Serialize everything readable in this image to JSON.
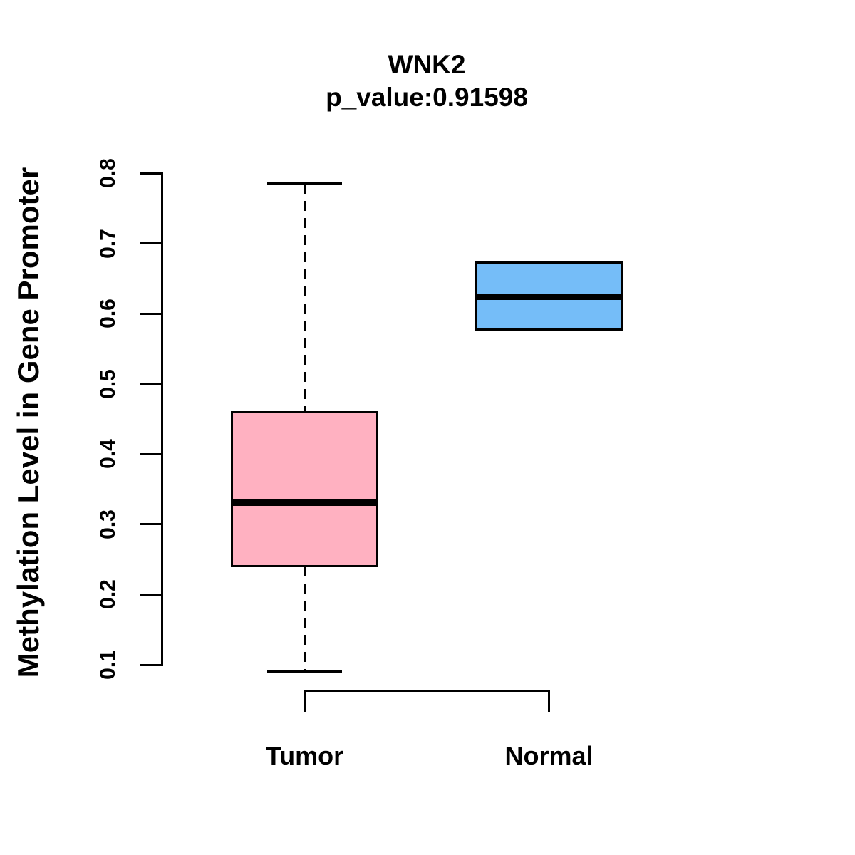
{
  "page": {
    "background_color": "#FFFFFF",
    "text_color": "#000000"
  },
  "chart_data": {
    "type": "boxplot",
    "title": "WNK2",
    "subtitle": "p_value:0.91598",
    "xlabel": "",
    "ylabel": "Methylation Level in Gene Promoter",
    "ylim": [
      0.1,
      0.8
    ],
    "yticks": [
      "0.1",
      "0.2",
      "0.3",
      "0.4",
      "0.5",
      "0.6",
      "0.7",
      "0.8"
    ],
    "grid": false,
    "legend": "none",
    "categories": [
      "Tumor",
      "Normal"
    ],
    "groups": [
      {
        "label": "Tumor",
        "fill_color": "#FFB1C1",
        "whisker_low": 0.09,
        "q1": 0.24,
        "median": 0.331,
        "q3": 0.46,
        "whisker_high": 0.785
      },
      {
        "label": "Normal",
        "fill_color": "#75BDF8",
        "whisker_low": 0.577,
        "q1": 0.577,
        "median": 0.624,
        "q3": 0.673,
        "whisker_high": 0.673
      }
    ],
    "line_color": "#000000"
  }
}
